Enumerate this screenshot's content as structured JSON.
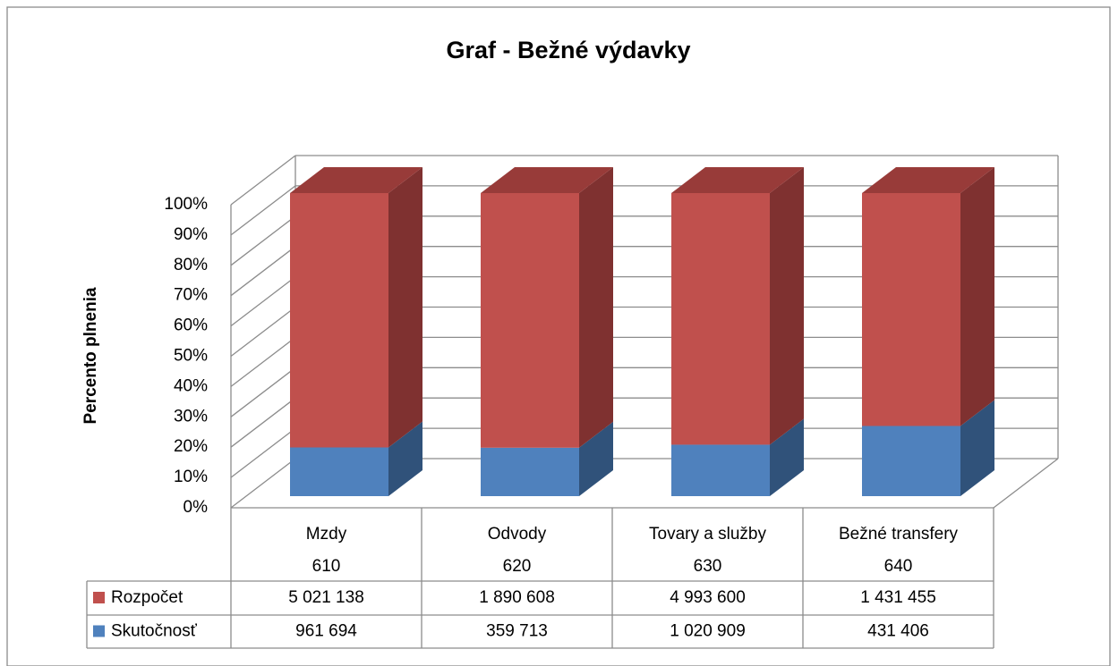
{
  "chart_data": {
    "type": "bar",
    "stacking": "percent",
    "three_d": true,
    "title": "Graf - Bežné výdavky",
    "y_axis_label": "Percento plnenia",
    "categories": [
      "Mzdy",
      "Odvody",
      "Tovary a služby",
      "Bežné transfery"
    ],
    "category_codes": [
      "610",
      "620",
      "630",
      "640"
    ],
    "series": [
      {
        "name": "Rozpočet",
        "color": "#c0504d",
        "side_color": "#7f3130",
        "top_color": "#983b39",
        "values": [
          5021138,
          1890608,
          4993600,
          1431455
        ],
        "value_labels": [
          "5 021 138",
          "1 890 608",
          "4 993 600",
          "1 431 455"
        ]
      },
      {
        "name": "Skutočnosť",
        "color": "#4f81bd",
        "side_color": "#30527a",
        "top_color": "#3e6698",
        "values": [
          961694,
          359713,
          1020909,
          431406
        ],
        "value_labels": [
          "961 694",
          "359 713",
          "1 020 909",
          "431 406"
        ]
      }
    ],
    "ylim": [
      0,
      100
    ],
    "yticks": [
      {
        "value": 0,
        "label": "0%"
      },
      {
        "value": 10,
        "label": "10%"
      },
      {
        "value": 20,
        "label": "20%"
      },
      {
        "value": 30,
        "label": "30%"
      },
      {
        "value": 40,
        "label": "40%"
      },
      {
        "value": 50,
        "label": "50%"
      },
      {
        "value": 60,
        "label": "60%"
      },
      {
        "value": 70,
        "label": "70%"
      },
      {
        "value": 80,
        "label": "80%"
      },
      {
        "value": 90,
        "label": "90%"
      },
      {
        "value": 100,
        "label": "100%"
      }
    ],
    "grid": true,
    "data_table": true
  }
}
